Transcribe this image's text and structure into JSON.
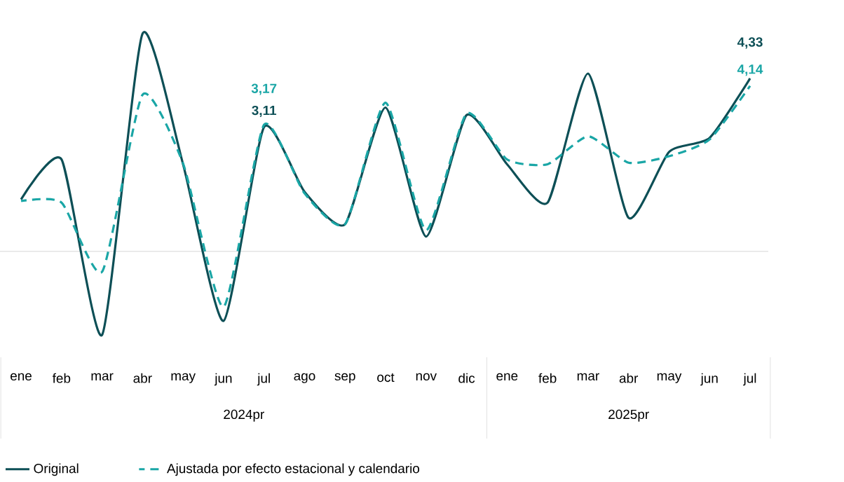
{
  "chart_data": {
    "type": "line",
    "categories": [
      "ene",
      "feb",
      "mar",
      "abr",
      "may",
      "jun",
      "jul",
      "ago",
      "sep",
      "oct",
      "nov",
      "dic",
      "ene",
      "feb",
      "mar",
      "abr",
      "may",
      "jun",
      "jul"
    ],
    "series": [
      {
        "name": "Original",
        "color": "#0d4f56",
        "line_style": "solid",
        "values": [
          1.3,
          2.3,
          -2.09,
          5.45,
          2.18,
          -1.74,
          3.11,
          1.49,
          0.68,
          3.6,
          0.37,
          3.41,
          2.18,
          1.22,
          4.45,
          0.84,
          2.49,
          2.84,
          4.33
        ],
        "value_labels": [
          null,
          null,
          null,
          null,
          null,
          null,
          "3,11",
          null,
          null,
          null,
          null,
          null,
          null,
          null,
          null,
          null,
          null,
          null,
          "4,33"
        ]
      },
      {
        "name": "Ajustada por efecto estacional y calendario",
        "color": "#1aa6a6",
        "line_style": "dashed",
        "values": [
          1.26,
          1.22,
          -0.51,
          3.92,
          2.2,
          -1.39,
          3.17,
          1.45,
          0.68,
          3.72,
          0.53,
          3.45,
          2.3,
          2.18,
          2.88,
          2.22,
          2.38,
          2.8,
          4.14
        ],
        "value_labels": [
          null,
          null,
          null,
          null,
          null,
          null,
          "3,17",
          null,
          null,
          null,
          null,
          null,
          null,
          null,
          null,
          null,
          null,
          null,
          "4,14"
        ]
      }
    ],
    "annotations": [
      "2024pr",
      "2025pr"
    ],
    "tick_labels": "x",
    "legend": "bottom",
    "marker": "none"
  }
}
